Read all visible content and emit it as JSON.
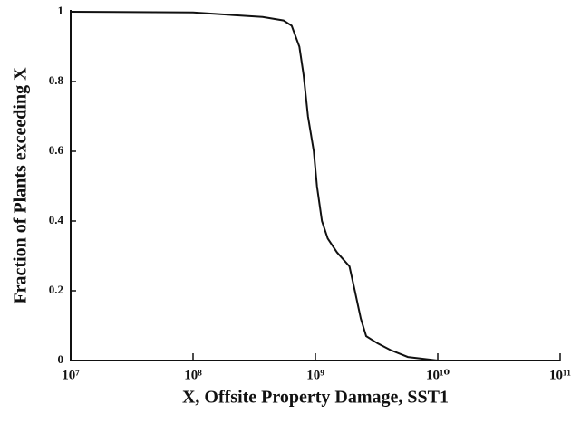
{
  "chart_data": {
    "type": "line",
    "log_x": true,
    "xlabel": "X, Offsite Property Damage, SST1",
    "ylabel": "Fraction of Plants exceeding X",
    "x": [
      10000000,
      100000000,
      370000000,
      550000000,
      640000000,
      740000000,
      800000000,
      870000000,
      970000000,
      1030000000,
      1130000000,
      1260000000,
      1500000000,
      1900000000,
      2100000000,
      2350000000,
      2600000000,
      3200000000,
      4100000000,
      5700000000,
      10000000000
    ],
    "series": [
      {
        "name": "SST1",
        "color": "#111111",
        "values": [
          1.0,
          0.998,
          0.985,
          0.975,
          0.96,
          0.9,
          0.82,
          0.7,
          0.6,
          0.5,
          0.4,
          0.35,
          0.31,
          0.27,
          0.2,
          0.12,
          0.07,
          0.05,
          0.03,
          0.01,
          0
        ]
      }
    ],
    "xlim": [
      10000000,
      100000000000
    ],
    "xticks": [
      {
        "value": 10000000,
        "label": "10⁷"
      },
      {
        "value": 100000000,
        "label": "10⁸"
      },
      {
        "value": 1000000000,
        "label": "10⁹"
      },
      {
        "value": 10000000000,
        "label": "10¹⁰"
      },
      {
        "value": 100000000000,
        "label": "10¹¹"
      }
    ],
    "ylim": [
      0,
      1
    ],
    "yticks": [
      0,
      0.2,
      0.4,
      0.6,
      0.8,
      1
    ]
  }
}
